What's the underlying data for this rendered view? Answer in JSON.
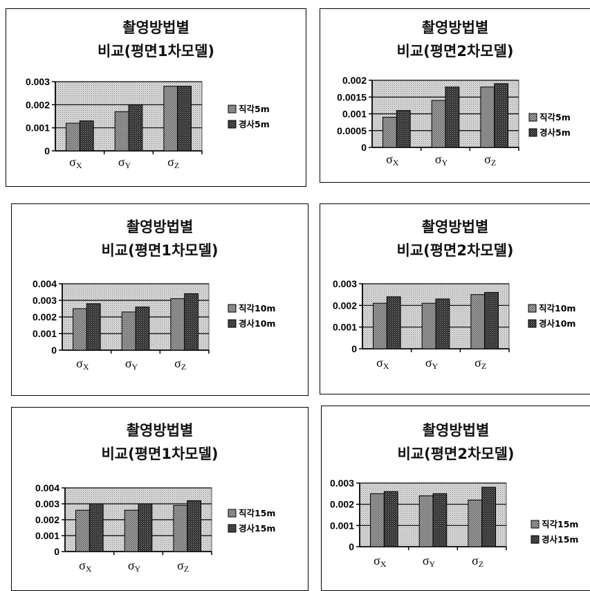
{
  "chart_data": [
    {
      "type": "bar",
      "title": "촬영방법별 비교(평면1차모델)",
      "title_lines": [
        "촬영방법별",
        "비교(평면1차모델)"
      ],
      "categories": [
        "σX",
        "σY",
        "σZ"
      ],
      "category_labels": [
        {
          "main": "σ",
          "sub": "X"
        },
        {
          "main": "σ",
          "sub": "Y"
        },
        {
          "main": "σ",
          "sub": "Z"
        }
      ],
      "series": [
        {
          "name": "직각5m",
          "values": [
            0.0012,
            0.0017,
            0.0028
          ]
        },
        {
          "name": "경사5m",
          "values": [
            0.0013,
            0.002,
            0.0028
          ]
        }
      ],
      "ylim": [
        0,
        0.003
      ],
      "yticks": [
        "0",
        "0.001",
        "0.002",
        "0.003"
      ],
      "legend_position": "right",
      "grid": true
    },
    {
      "type": "bar",
      "title": "촬영방법별 비교(평면2차모델)",
      "title_lines": [
        "촬영방법별",
        "비교(평면2차모델)"
      ],
      "categories": [
        "σX",
        "σY",
        "σZ"
      ],
      "category_labels": [
        {
          "main": "σ",
          "sub": "X"
        },
        {
          "main": "σ",
          "sub": "Y"
        },
        {
          "main": "σ",
          "sub": "Z"
        }
      ],
      "series": [
        {
          "name": "직각5m",
          "values": [
            0.0009,
            0.0014,
            0.0018
          ]
        },
        {
          "name": "경사5m",
          "values": [
            0.0011,
            0.0018,
            0.0019
          ]
        }
      ],
      "ylim": [
        0,
        0.002
      ],
      "yticks": [
        "0",
        "0.0005",
        "0.001",
        "0.0015",
        "0.002"
      ],
      "legend_position": "right",
      "grid": true
    },
    {
      "type": "bar",
      "title": "촬영방법별 비교(평면1차모델)",
      "title_lines": [
        "촬영방법별",
        "비교(평면1차모델)"
      ],
      "categories": [
        "σX",
        "σY",
        "σZ"
      ],
      "category_labels": [
        {
          "main": "σ",
          "sub": "X"
        },
        {
          "main": "σ",
          "sub": "Y"
        },
        {
          "main": "σ",
          "sub": "Z"
        }
      ],
      "series": [
        {
          "name": "직각10m",
          "values": [
            0.0025,
            0.0023,
            0.0031
          ]
        },
        {
          "name": "경사10m",
          "values": [
            0.0028,
            0.0026,
            0.0034
          ]
        }
      ],
      "ylim": [
        0,
        0.004
      ],
      "yticks": [
        "0",
        "0.001",
        "0.002",
        "0.003",
        "0.004"
      ],
      "legend_position": "right",
      "grid": true
    },
    {
      "type": "bar",
      "title": "촬영방법별 비교(평면2차모델)",
      "title_lines": [
        "촬영방법별",
        "비교(평면2차모델)"
      ],
      "categories": [
        "σX",
        "σY",
        "σZ"
      ],
      "category_labels": [
        {
          "main": "σ",
          "sub": "X"
        },
        {
          "main": "σ",
          "sub": "Y"
        },
        {
          "main": "σ",
          "sub": "Z"
        }
      ],
      "series": [
        {
          "name": "직각10m",
          "values": [
            0.0021,
            0.0021,
            0.0025
          ]
        },
        {
          "name": "경사10m",
          "values": [
            0.0024,
            0.0023,
            0.0026
          ]
        }
      ],
      "ylim": [
        0,
        0.003
      ],
      "yticks": [
        "0",
        "0.001",
        "0.002",
        "0.003"
      ],
      "legend_position": "right",
      "grid": true
    },
    {
      "type": "bar",
      "title": "촬영방법별 비교(평면1차모델)",
      "title_lines": [
        "촬영방법별",
        "비교(평면1차모델)"
      ],
      "categories": [
        "σX",
        "σY",
        "σZ"
      ],
      "category_labels": [
        {
          "main": "σ",
          "sub": "X"
        },
        {
          "main": "σ",
          "sub": "Y"
        },
        {
          "main": "σ",
          "sub": "Z"
        }
      ],
      "series": [
        {
          "name": "직각15m",
          "values": [
            0.0026,
            0.0026,
            0.0029
          ]
        },
        {
          "name": "경사15m",
          "values": [
            0.003,
            0.003,
            0.0032
          ]
        }
      ],
      "ylim": [
        0,
        0.004
      ],
      "yticks": [
        "0",
        "0.001",
        "0.002",
        "0.003",
        "0.004"
      ],
      "legend_position": "right",
      "grid": true
    },
    {
      "type": "bar",
      "title": "촬영방법별 비교(평면2차모델)",
      "title_lines": [
        "촬영방법별",
        "비교(평면2차모델)"
      ],
      "categories": [
        "σX",
        "σY",
        "σZ"
      ],
      "category_labels": [
        {
          "main": "σ",
          "sub": "X"
        },
        {
          "main": "σ",
          "sub": "Y"
        },
        {
          "main": "σ",
          "sub": "Z"
        }
      ],
      "series": [
        {
          "name": "직각15m",
          "values": [
            0.0025,
            0.0024,
            0.0022
          ]
        },
        {
          "name": "경사15m",
          "values": [
            0.0026,
            0.0025,
            0.0028
          ]
        }
      ],
      "ylim": [
        0,
        0.003
      ],
      "yticks": [
        "0",
        "0.001",
        "0.002",
        "0.003"
      ],
      "legend_position": "right",
      "grid": true
    }
  ],
  "colors": {
    "plot_area": "#c9c9c9",
    "series_1": "#909090",
    "series_2": "#3a3a3a"
  }
}
